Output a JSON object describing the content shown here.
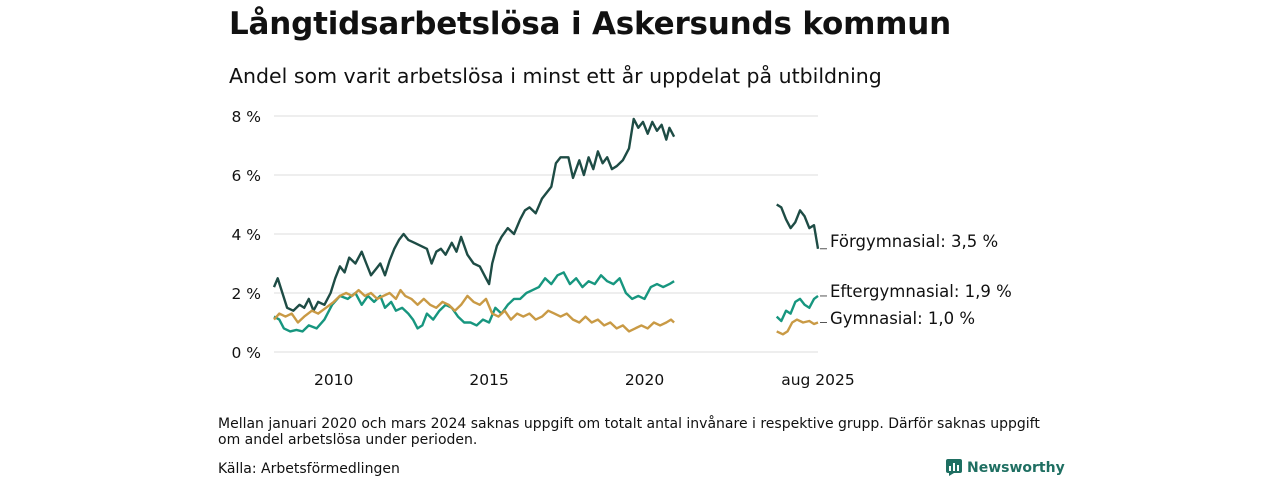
{
  "title": "Långtidsarbetslösa i Askersunds kommun",
  "subtitle": "Andel som varit arbetslösa i minst ett år uppdelat på utbildning",
  "note": "Mellan januari 2020 och mars 2024 saknas uppgift om totalt antal invånare i respektive grupp. Därför saknas uppgift om andel arbetslösa under perioden.",
  "source": "Källa: Arbetsförmedlingen",
  "brand": {
    "name": "Newsworthy",
    "icon": "newsworthy-logo-icon",
    "color": "#1f6f62"
  },
  "chart_data": {
    "type": "line",
    "x_unit": "year (decimal)",
    "xlim": [
      2008.08,
      2025.58
    ],
    "ylim": [
      0,
      8
    ],
    "y_ticks": [
      0,
      2,
      4,
      6,
      8
    ],
    "y_tick_labels": [
      "0 %",
      "2 %",
      "4 %",
      "6 %",
      "8 %"
    ],
    "x_ticks": [
      2010,
      2015,
      2020,
      2025.58
    ],
    "x_tick_labels": [
      "2010",
      "2015",
      "2020",
      "aug 2025"
    ],
    "grid": "horizontal",
    "legend": "direct labels at line ends",
    "series": [
      {
        "name": "Förgymnasial",
        "end_label": "Förgymnasial: 3,5 %",
        "color": "#1e4c45",
        "segments": [
          [
            [
              2008.08,
              2.2
            ],
            [
              2008.2,
              2.5
            ],
            [
              2008.35,
              2.0
            ],
            [
              2008.5,
              1.5
            ],
            [
              2008.7,
              1.4
            ],
            [
              2008.9,
              1.6
            ],
            [
              2009.05,
              1.5
            ],
            [
              2009.2,
              1.8
            ],
            [
              2009.35,
              1.4
            ],
            [
              2009.5,
              1.7
            ],
            [
              2009.7,
              1.6
            ],
            [
              2009.9,
              2.0
            ],
            [
              2010.05,
              2.5
            ],
            [
              2010.2,
              2.9
            ],
            [
              2010.35,
              2.7
            ],
            [
              2010.5,
              3.2
            ],
            [
              2010.7,
              3.0
            ],
            [
              2010.9,
              3.4
            ],
            [
              2011.05,
              3.0
            ],
            [
              2011.2,
              2.6
            ],
            [
              2011.35,
              2.8
            ],
            [
              2011.5,
              3.0
            ],
            [
              2011.65,
              2.6
            ],
            [
              2011.8,
              3.1
            ],
            [
              2011.95,
              3.5
            ],
            [
              2012.1,
              3.8
            ],
            [
              2012.25,
              4.0
            ],
            [
              2012.4,
              3.8
            ],
            [
              2012.6,
              3.7
            ],
            [
              2012.8,
              3.6
            ],
            [
              2013.0,
              3.5
            ],
            [
              2013.15,
              3.0
            ],
            [
              2013.3,
              3.4
            ],
            [
              2013.45,
              3.5
            ],
            [
              2013.6,
              3.3
            ],
            [
              2013.8,
              3.7
            ],
            [
              2013.95,
              3.4
            ],
            [
              2014.1,
              3.9
            ],
            [
              2014.3,
              3.3
            ],
            [
              2014.5,
              3.0
            ],
            [
              2014.7,
              2.9
            ],
            [
              2014.9,
              2.5
            ],
            [
              2015.0,
              2.3
            ],
            [
              2015.1,
              3.0
            ],
            [
              2015.25,
              3.6
            ],
            [
              2015.4,
              3.9
            ],
            [
              2015.6,
              4.2
            ],
            [
              2015.8,
              4.0
            ],
            [
              2016.0,
              4.5
            ],
            [
              2016.15,
              4.8
            ],
            [
              2016.3,
              4.9
            ],
            [
              2016.5,
              4.7
            ],
            [
              2016.7,
              5.2
            ],
            [
              2016.85,
              5.4
            ],
            [
              2017.0,
              5.6
            ],
            [
              2017.15,
              6.4
            ],
            [
              2017.3,
              6.6
            ],
            [
              2017.55,
              6.6
            ],
            [
              2017.7,
              5.9
            ],
            [
              2017.9,
              6.5
            ],
            [
              2018.05,
              6.0
            ],
            [
              2018.2,
              6.6
            ],
            [
              2018.35,
              6.2
            ],
            [
              2018.5,
              6.8
            ],
            [
              2018.65,
              6.4
            ],
            [
              2018.8,
              6.6
            ],
            [
              2018.95,
              6.2
            ],
            [
              2019.1,
              6.3
            ],
            [
              2019.3,
              6.5
            ],
            [
              2019.5,
              6.9
            ],
            [
              2019.65,
              7.9
            ],
            [
              2019.8,
              7.6
            ],
            [
              2019.95,
              7.8
            ],
            [
              2020.1,
              7.4
            ],
            [
              2020.25,
              7.8
            ],
            [
              2020.4,
              7.5
            ],
            [
              2020.55,
              7.7
            ],
            [
              2020.7,
              7.2
            ],
            [
              2020.8,
              7.6
            ],
            [
              2020.95,
              7.3
            ]
          ],
          [
            [
              2024.25,
              5.0
            ],
            [
              2024.4,
              4.9
            ],
            [
              2024.55,
              4.5
            ],
            [
              2024.7,
              4.2
            ],
            [
              2024.85,
              4.4
            ],
            [
              2025.0,
              4.8
            ],
            [
              2025.15,
              4.6
            ],
            [
              2025.3,
              4.2
            ],
            [
              2025.45,
              4.3
            ],
            [
              2025.58,
              3.5
            ]
          ]
        ]
      },
      {
        "name": "Eftergymnasial",
        "end_label": "Eftergymnasial: 1,9 %",
        "color": "#17967f",
        "segments": [
          [
            [
              2008.08,
              1.2
            ],
            [
              2008.25,
              1.1
            ],
            [
              2008.4,
              0.8
            ],
            [
              2008.6,
              0.7
            ],
            [
              2008.8,
              0.75
            ],
            [
              2009.0,
              0.7
            ],
            [
              2009.2,
              0.9
            ],
            [
              2009.45,
              0.8
            ],
            [
              2009.7,
              1.1
            ],
            [
              2009.95,
              1.6
            ],
            [
              2010.2,
              1.9
            ],
            [
              2010.45,
              1.8
            ],
            [
              2010.7,
              2.0
            ],
            [
              2010.9,
              1.6
            ],
            [
              2011.1,
              1.9
            ],
            [
              2011.3,
              1.7
            ],
            [
              2011.5,
              1.9
            ],
            [
              2011.65,
              1.5
            ],
            [
              2011.85,
              1.7
            ],
            [
              2012.0,
              1.4
            ],
            [
              2012.2,
              1.5
            ],
            [
              2012.4,
              1.3
            ],
            [
              2012.55,
              1.1
            ],
            [
              2012.7,
              0.8
            ],
            [
              2012.85,
              0.9
            ],
            [
              2013.0,
              1.3
            ],
            [
              2013.2,
              1.1
            ],
            [
              2013.4,
              1.4
            ],
            [
              2013.6,
              1.6
            ],
            [
              2013.8,
              1.5
            ],
            [
              2014.0,
              1.2
            ],
            [
              2014.2,
              1.0
            ],
            [
              2014.4,
              1.0
            ],
            [
              2014.6,
              0.9
            ],
            [
              2014.8,
              1.1
            ],
            [
              2015.0,
              1.0
            ],
            [
              2015.2,
              1.5
            ],
            [
              2015.4,
              1.3
            ],
            [
              2015.6,
              1.6
            ],
            [
              2015.8,
              1.8
            ],
            [
              2016.0,
              1.8
            ],
            [
              2016.2,
              2.0
            ],
            [
              2016.4,
              2.1
            ],
            [
              2016.6,
              2.2
            ],
            [
              2016.8,
              2.5
            ],
            [
              2017.0,
              2.3
            ],
            [
              2017.2,
              2.6
            ],
            [
              2017.4,
              2.7
            ],
            [
              2017.6,
              2.3
            ],
            [
              2017.8,
              2.5
            ],
            [
              2018.0,
              2.2
            ],
            [
              2018.2,
              2.4
            ],
            [
              2018.4,
              2.3
            ],
            [
              2018.6,
              2.6
            ],
            [
              2018.8,
              2.4
            ],
            [
              2019.0,
              2.3
            ],
            [
              2019.2,
              2.5
            ],
            [
              2019.4,
              2.0
            ],
            [
              2019.6,
              1.8
            ],
            [
              2019.8,
              1.9
            ],
            [
              2020.0,
              1.8
            ],
            [
              2020.2,
              2.2
            ],
            [
              2020.4,
              2.3
            ],
            [
              2020.6,
              2.2
            ],
            [
              2020.8,
              2.3
            ],
            [
              2020.95,
              2.4
            ]
          ],
          [
            [
              2024.25,
              1.2
            ],
            [
              2024.4,
              1.05
            ],
            [
              2024.55,
              1.4
            ],
            [
              2024.7,
              1.3
            ],
            [
              2024.85,
              1.7
            ],
            [
              2025.0,
              1.8
            ],
            [
              2025.15,
              1.6
            ],
            [
              2025.3,
              1.5
            ],
            [
              2025.45,
              1.8
            ],
            [
              2025.58,
              1.9
            ]
          ]
        ]
      },
      {
        "name": "Gymnasial",
        "end_label": "Gymnasial: 1,0 %",
        "color": "#c99a45",
        "segments": [
          [
            [
              2008.08,
              1.1
            ],
            [
              2008.25,
              1.3
            ],
            [
              2008.45,
              1.2
            ],
            [
              2008.65,
              1.3
            ],
            [
              2008.85,
              1.0
            ],
            [
              2009.05,
              1.2
            ],
            [
              2009.3,
              1.4
            ],
            [
              2009.5,
              1.3
            ],
            [
              2009.75,
              1.5
            ],
            [
              2010.0,
              1.7
            ],
            [
              2010.2,
              1.9
            ],
            [
              2010.4,
              2.0
            ],
            [
              2010.6,
              1.9
            ],
            [
              2010.8,
              2.1
            ],
            [
              2011.0,
              1.9
            ],
            [
              2011.2,
              2.0
            ],
            [
              2011.4,
              1.8
            ],
            [
              2011.6,
              1.9
            ],
            [
              2011.8,
              2.0
            ],
            [
              2012.0,
              1.8
            ],
            [
              2012.15,
              2.1
            ],
            [
              2012.3,
              1.9
            ],
            [
              2012.5,
              1.8
            ],
            [
              2012.7,
              1.6
            ],
            [
              2012.9,
              1.8
            ],
            [
              2013.1,
              1.6
            ],
            [
              2013.3,
              1.5
            ],
            [
              2013.5,
              1.7
            ],
            [
              2013.7,
              1.6
            ],
            [
              2013.9,
              1.4
            ],
            [
              2014.1,
              1.6
            ],
            [
              2014.3,
              1.9
            ],
            [
              2014.5,
              1.7
            ],
            [
              2014.7,
              1.6
            ],
            [
              2014.9,
              1.8
            ],
            [
              2015.1,
              1.3
            ],
            [
              2015.3,
              1.2
            ],
            [
              2015.5,
              1.4
            ],
            [
              2015.7,
              1.1
            ],
            [
              2015.9,
              1.3
            ],
            [
              2016.1,
              1.2
            ],
            [
              2016.3,
              1.3
            ],
            [
              2016.5,
              1.1
            ],
            [
              2016.7,
              1.2
            ],
            [
              2016.9,
              1.4
            ],
            [
              2017.1,
              1.3
            ],
            [
              2017.3,
              1.2
            ],
            [
              2017.5,
              1.3
            ],
            [
              2017.7,
              1.1
            ],
            [
              2017.9,
              1.0
            ],
            [
              2018.1,
              1.2
            ],
            [
              2018.3,
              1.0
            ],
            [
              2018.5,
              1.1
            ],
            [
              2018.7,
              0.9
            ],
            [
              2018.9,
              1.0
            ],
            [
              2019.1,
              0.8
            ],
            [
              2019.3,
              0.9
            ],
            [
              2019.5,
              0.7
            ],
            [
              2019.7,
              0.8
            ],
            [
              2019.9,
              0.9
            ],
            [
              2020.1,
              0.8
            ],
            [
              2020.3,
              1.0
            ],
            [
              2020.5,
              0.9
            ],
            [
              2020.7,
              1.0
            ],
            [
              2020.85,
              1.1
            ],
            [
              2020.95,
              1.0
            ]
          ],
          [
            [
              2024.25,
              0.7
            ],
            [
              2024.45,
              0.6
            ],
            [
              2024.6,
              0.7
            ],
            [
              2024.75,
              1.0
            ],
            [
              2024.9,
              1.1
            ],
            [
              2025.1,
              1.0
            ],
            [
              2025.3,
              1.05
            ],
            [
              2025.45,
              0.95
            ],
            [
              2025.58,
              1.0
            ]
          ]
        ]
      }
    ]
  }
}
